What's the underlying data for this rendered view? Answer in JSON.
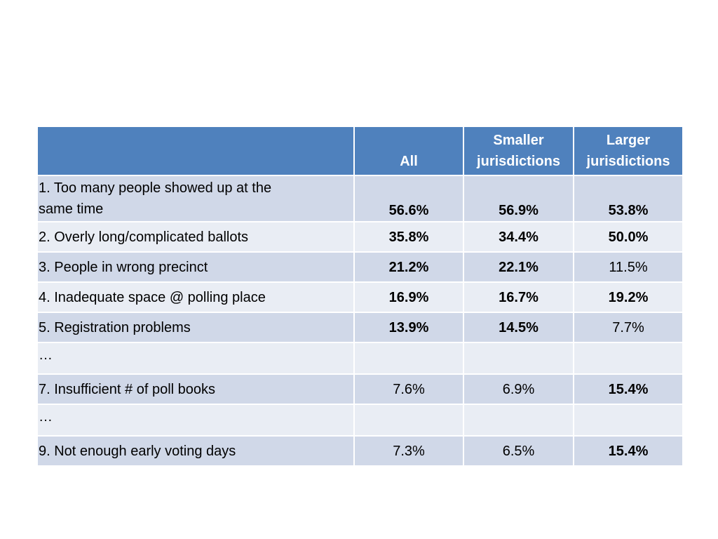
{
  "chart_data": {
    "type": "table",
    "columns": [
      "",
      "All",
      "Smaller jurisdictions",
      "Larger jurisdictions"
    ],
    "header": {
      "all": "All",
      "smaller_line1": "Smaller",
      "smaller_line2": "jurisdictions",
      "larger_line1": "Larger",
      "larger_line2": "jurisdictions"
    },
    "rows": [
      {
        "label_line1": "1. Too many people showed up at the",
        "label_line2": "same time",
        "all": "56.6%",
        "smaller": "56.9%",
        "larger": "53.8%",
        "bold": [
          true,
          true,
          true
        ]
      },
      {
        "label": "2. Overly long/complicated ballots",
        "all": "35.8%",
        "smaller": "34.4%",
        "larger": "50.0%",
        "bold": [
          true,
          true,
          true
        ]
      },
      {
        "label": "3. People in wrong precinct",
        "all": "21.2%",
        "smaller": "22.1%",
        "larger": "11.5%",
        "bold": [
          true,
          true,
          false
        ]
      },
      {
        "label": "4. Inadequate space @ polling place",
        "all": "16.9%",
        "smaller": "16.7%",
        "larger": "19.2%",
        "bold": [
          true,
          true,
          true
        ]
      },
      {
        "label": "5. Registration problems",
        "all": "13.9%",
        "smaller": "14.5%",
        "larger": "7.7%",
        "bold": [
          true,
          true,
          false
        ]
      },
      {
        "label": "…",
        "all": "",
        "smaller": "",
        "larger": ""
      },
      {
        "label": "7. Insufficient # of poll books",
        "all": "7.6%",
        "smaller": "6.9%",
        "larger": "15.4%",
        "bold": [
          false,
          false,
          true
        ]
      },
      {
        "label": "…",
        "all": "",
        "smaller": "",
        "larger": ""
      },
      {
        "label": "9.  Not enough early voting days",
        "all": "7.3%",
        "smaller": "6.5%",
        "larger": "15.4%",
        "bold": [
          false,
          false,
          true
        ]
      }
    ]
  },
  "colors": {
    "header_bg": "#4f81bd",
    "row_odd_bg": "#d0d8e8",
    "row_even_bg": "#e9edf4"
  }
}
